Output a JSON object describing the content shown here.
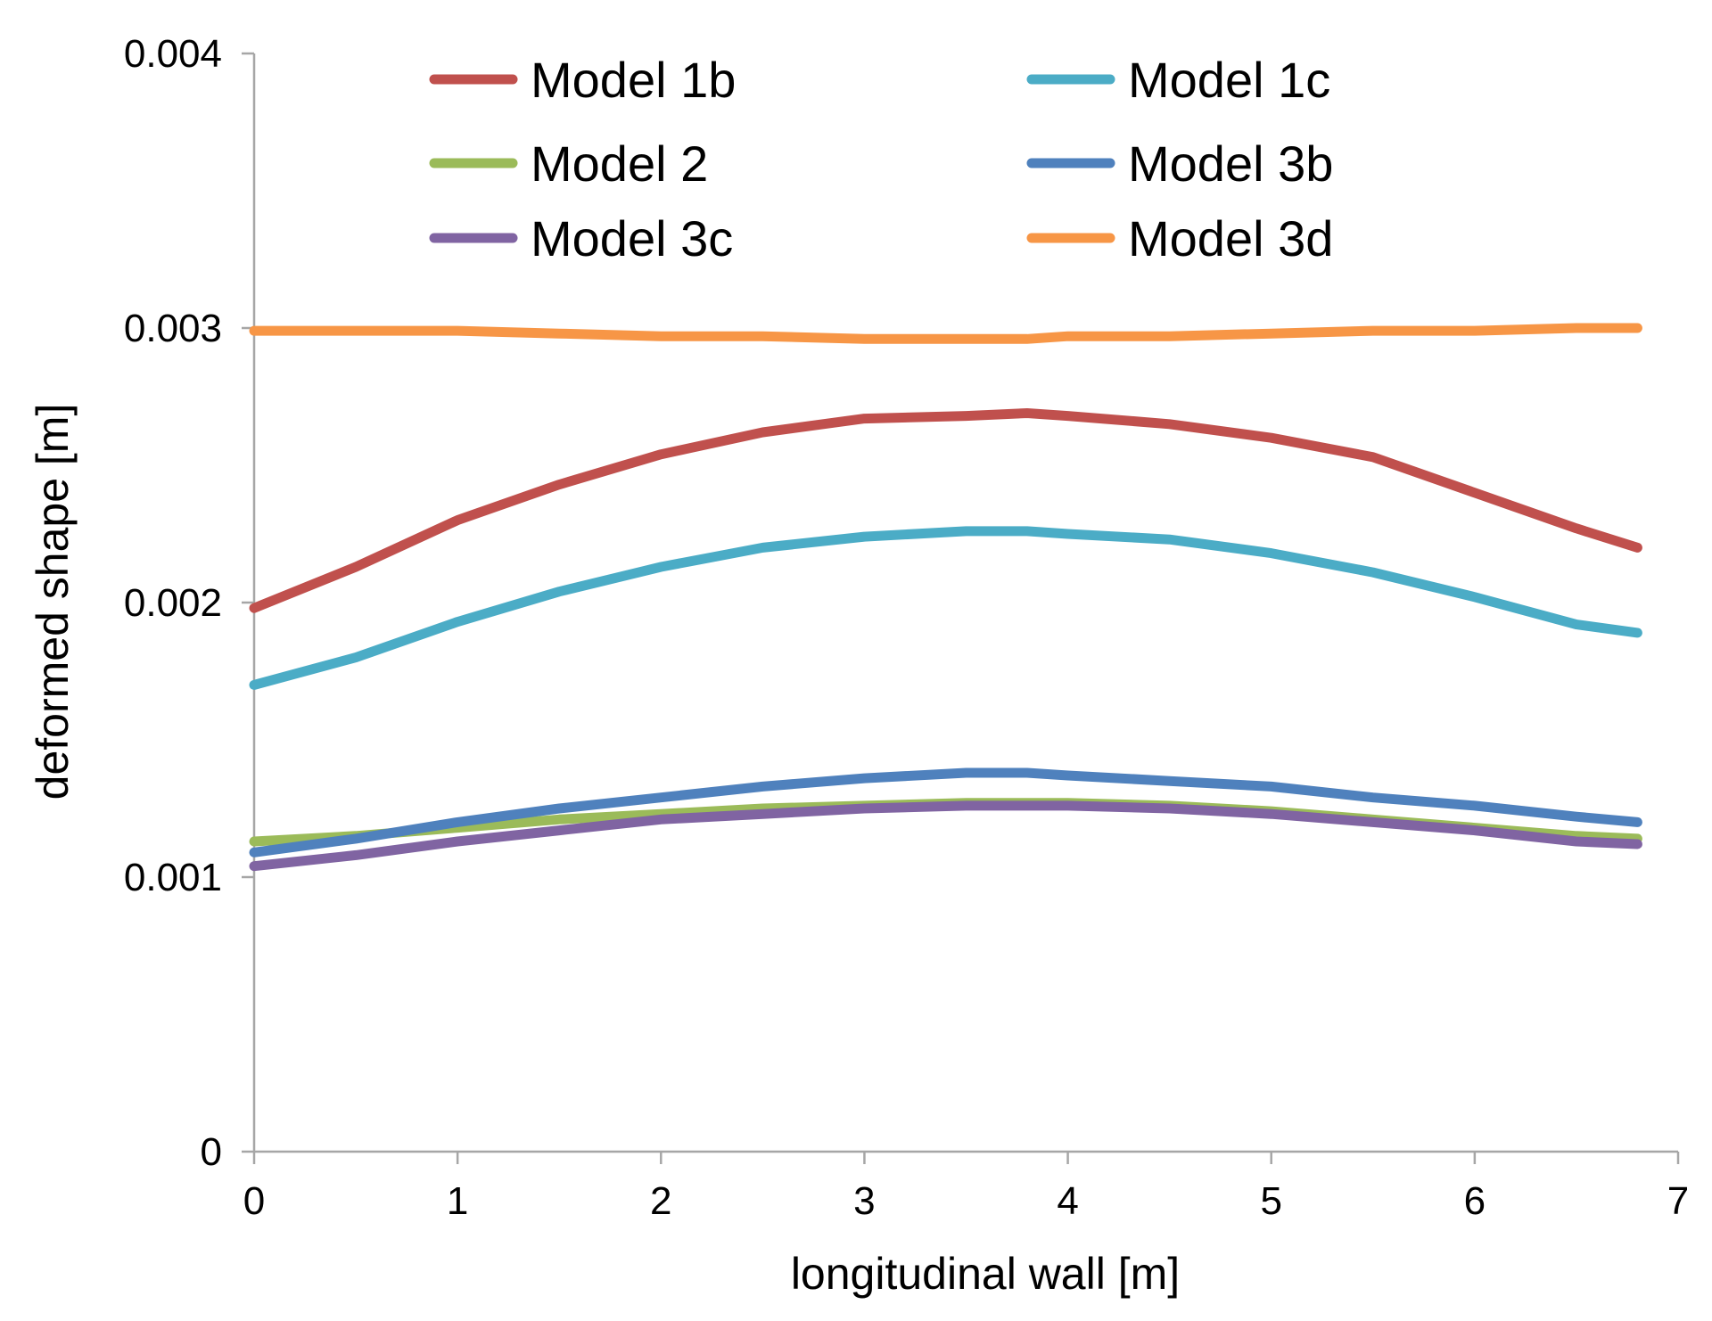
{
  "chart_data": {
    "type": "line",
    "title": "",
    "xlabel": "longitudinal wall [m]",
    "ylabel": "deformed shape [m]",
    "xlim": [
      0,
      7
    ],
    "ylim": [
      0,
      0.004
    ],
    "xticks": [
      "0",
      "1",
      "2",
      "3",
      "4",
      "5",
      "6",
      "7"
    ],
    "yticks": [
      "0",
      "0.001",
      "0.002",
      "0.003",
      "0.004"
    ],
    "grid": false,
    "legend_position": "top",
    "x": [
      0,
      0.5,
      1,
      1.5,
      2,
      2.5,
      3,
      3.5,
      3.8,
      4,
      4.5,
      5,
      5.5,
      6,
      6.5,
      6.8
    ],
    "series": [
      {
        "name": "Model 1b",
        "color": "#c0504d",
        "values": [
          0.00198,
          0.00213,
          0.0023,
          0.00243,
          0.00254,
          0.00262,
          0.00267,
          0.00268,
          0.00269,
          0.00268,
          0.00265,
          0.0026,
          0.00253,
          0.0024,
          0.00227,
          0.0022
        ]
      },
      {
        "name": "Model 1c",
        "color": "#4bacc6",
        "values": [
          0.0017,
          0.0018,
          0.00193,
          0.00204,
          0.00213,
          0.0022,
          0.00224,
          0.00226,
          0.00226,
          0.00225,
          0.00223,
          0.00218,
          0.00211,
          0.00202,
          0.00192,
          0.00189
        ]
      },
      {
        "name": "Model 2",
        "color": "#9bbb59",
        "values": [
          0.00113,
          0.00115,
          0.00118,
          0.00121,
          0.00123,
          0.00125,
          0.00126,
          0.00127,
          0.00127,
          0.00127,
          0.00126,
          0.00124,
          0.00121,
          0.00118,
          0.00115,
          0.00114
        ]
      },
      {
        "name": "Model 3b",
        "color": "#4f81bd",
        "values": [
          0.00109,
          0.00114,
          0.0012,
          0.00125,
          0.00129,
          0.00133,
          0.00136,
          0.00138,
          0.00138,
          0.00137,
          0.00135,
          0.00133,
          0.00129,
          0.00126,
          0.00122,
          0.0012
        ]
      },
      {
        "name": "Model 3c",
        "color": "#8064a2",
        "values": [
          0.00104,
          0.00108,
          0.00113,
          0.00117,
          0.00121,
          0.00123,
          0.00125,
          0.00126,
          0.00126,
          0.00126,
          0.00125,
          0.00123,
          0.0012,
          0.00117,
          0.00113,
          0.00112
        ]
      },
      {
        "name": "Model 3d",
        "color": "#f79646",
        "values": [
          0.00299,
          0.00299,
          0.00299,
          0.00298,
          0.00297,
          0.00297,
          0.00296,
          0.00296,
          0.00296,
          0.00297,
          0.00297,
          0.00298,
          0.00299,
          0.00299,
          0.003,
          0.003
        ]
      }
    ]
  }
}
